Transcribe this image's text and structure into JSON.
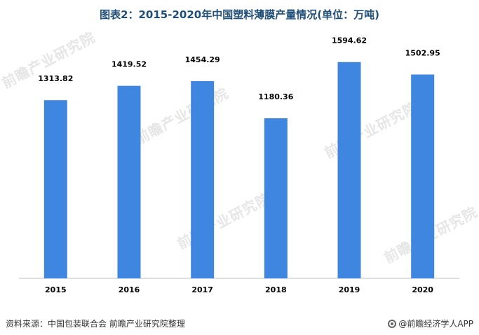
{
  "title": "图表2：2015-2020年中国塑料薄膜产量情况(单位：万吨)",
  "source": "资料来源：中国包装联合会 前瞻产业研究院整理",
  "brand": "@前瞻经济学人APP",
  "watermark": "前瞻产业研究院",
  "colors": {
    "bar": "#3f86e0",
    "title": "#1f4e79",
    "axis": "#bfbfbf",
    "watermark": "#e6e6e6"
  },
  "chart_data": {
    "type": "bar",
    "title": "图表2：2015-2020年中国塑料薄膜产量情况(单位：万吨)",
    "categories": [
      "2015",
      "2016",
      "2017",
      "2018",
      "2019",
      "2020"
    ],
    "values": [
      1313.82,
      1419.52,
      1454.29,
      1180.36,
      1594.62,
      1502.95
    ],
    "data_labels": [
      "1313.82",
      "1419.52",
      "1454.29",
      "1180.36",
      "1594.62",
      "1502.95"
    ],
    "xlabel": "",
    "ylabel": "",
    "ylim": [
      0,
      1650
    ],
    "grid": false,
    "legend": "none"
  }
}
